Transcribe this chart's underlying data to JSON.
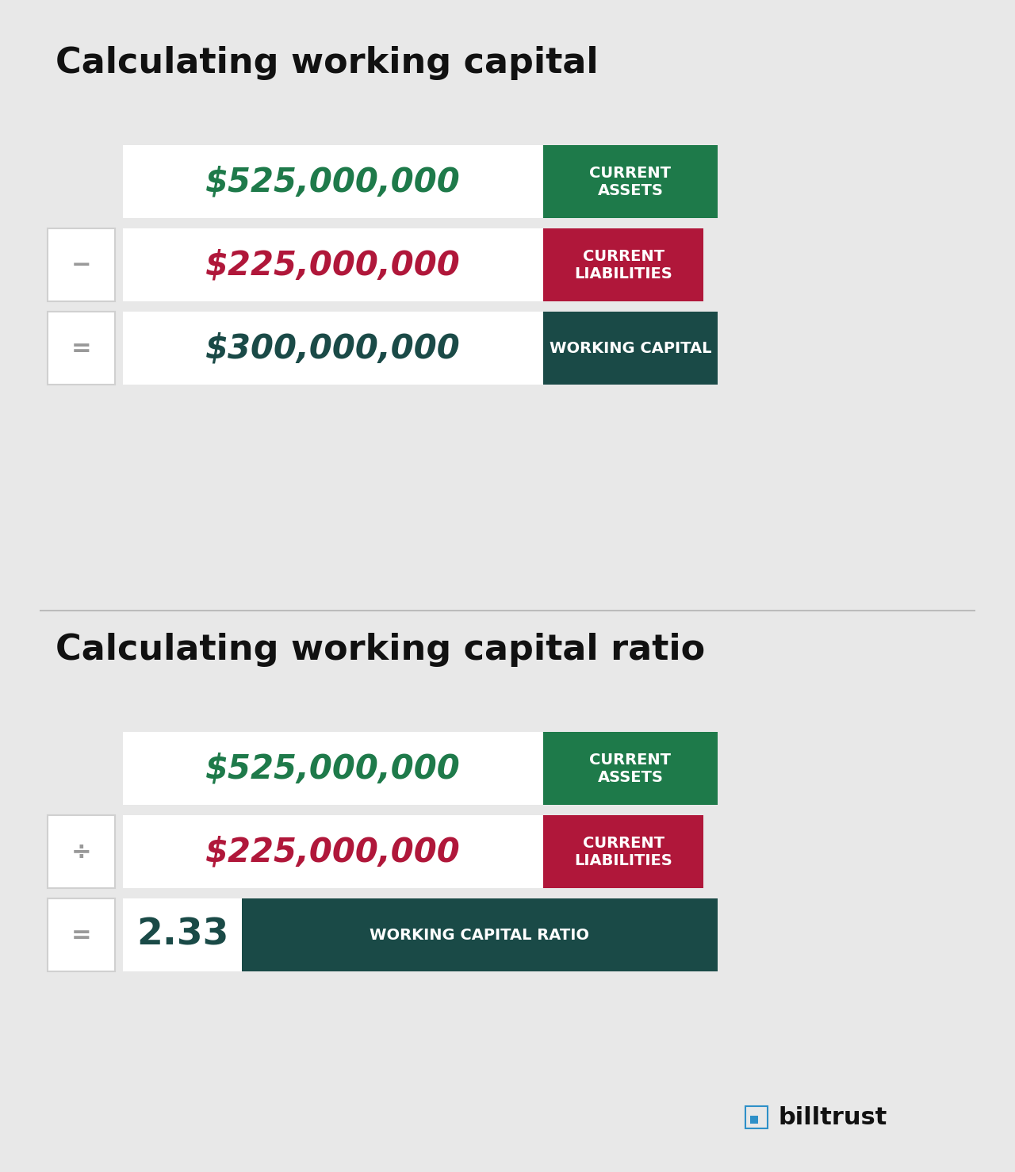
{
  "bg_color": "#e8e8e8",
  "title1": "Calculating working capital",
  "title2": "Calculating working capital ratio",
  "green_color": "#1e7a4a",
  "dark_green_color": "#1a4a47",
  "red_color": "#b0173a",
  "white_color": "#ffffff",
  "light_gray": "#d0d0d0",
  "symbol_color": "#999999",
  "row1_value": "$525,000,000",
  "row1_label": "CURRENT\nASSETS",
  "row2_value": "$225,000,000",
  "row2_label": "CURRENT\nLIABILITIES",
  "row3_value_wc": "$300,000,000",
  "row3_label_wc": "WORKING CAPITAL",
  "row3_value_wcr": "2.33",
  "row3_label_wcr": "WORKING CAPITAL RATIO",
  "minus_symbol": "−",
  "divide_symbol": "÷",
  "equals_symbol": "=",
  "billtrust_color": "#1a1a2e",
  "title_fontsize": 32,
  "value_fontsize": 30,
  "label_fontsize": 14,
  "symbol_fontsize": 22
}
